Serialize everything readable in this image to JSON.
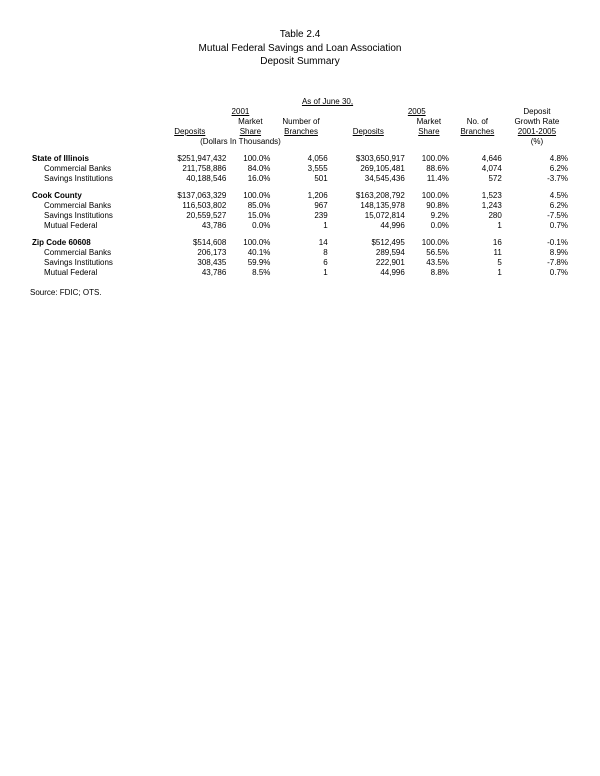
{
  "title": {
    "l1": "Table 2.4",
    "l2": "Mutual Federal Savings and Loan Association",
    "l3": "Deposit Summary"
  },
  "headings": {
    "as_of": "As of June 30,",
    "y2001": "2001",
    "y2005": "2005",
    "deposits": "Deposits",
    "market_share": "Market Share",
    "num_branches": "Number of Branches",
    "no_branches": "No. of Branches",
    "growth_l1": "Deposit",
    "growth_l2": "Growth Rate",
    "growth_l3": "2001-2005",
    "pct": "(%)",
    "dollars_note": "(Dollars In Thousands)"
  },
  "sections": [
    {
      "label": "State of Illinois",
      "row": {
        "dep01": "$251,947,432",
        "ms01": "100.0%",
        "br01": "4,056",
        "dep05": "$303,650,917",
        "ms05": "100.0%",
        "br05": "4,646",
        "gr": "4.8%"
      },
      "children": [
        {
          "label": "Commercial Banks",
          "dep01": "211,758,886",
          "ms01": "84.0%",
          "br01": "3,555",
          "dep05": "269,105,481",
          "ms05": "88.6%",
          "br05": "4,074",
          "gr": "6.2%"
        },
        {
          "label": "Savings Institutions",
          "dep01": "40,188,546",
          "ms01": "16.0%",
          "br01": "501",
          "dep05": "34,545,436",
          "ms05": "11.4%",
          "br05": "572",
          "gr": "-3.7%"
        }
      ]
    },
    {
      "label": "Cook County",
      "row": {
        "dep01": "$137,063,329",
        "ms01": "100.0%",
        "br01": "1,206",
        "dep05": "$163,208,792",
        "ms05": "100.0%",
        "br05": "1,523",
        "gr": "4.5%"
      },
      "children": [
        {
          "label": "Commercial Banks",
          "dep01": "116,503,802",
          "ms01": "85.0%",
          "br01": "967",
          "dep05": "148,135,978",
          "ms05": "90.8%",
          "br05": "1,243",
          "gr": "6.2%"
        },
        {
          "label": "Savings Institutions",
          "dep01": "20,559,527",
          "ms01": "15.0%",
          "br01": "239",
          "dep05": "15,072,814",
          "ms05": "9.2%",
          "br05": "280",
          "gr": "-7.5%"
        },
        {
          "label": "Mutual Federal",
          "dep01": "43,786",
          "ms01": "0.0%",
          "br01": "1",
          "dep05": "44,996",
          "ms05": "0.0%",
          "br05": "1",
          "gr": "0.7%"
        }
      ]
    },
    {
      "label": "Zip Code 60608",
      "row": {
        "dep01": "$514,608",
        "ms01": "100.0%",
        "br01": "14",
        "dep05": "$512,495",
        "ms05": "100.0%",
        "br05": "16",
        "gr": "-0.1%"
      },
      "children": [
        {
          "label": "Commercial Banks",
          "dep01": "206,173",
          "ms01": "40.1%",
          "br01": "8",
          "dep05": "289,594",
          "ms05": "56.5%",
          "br05": "11",
          "gr": "8.9%"
        },
        {
          "label": "Savings Institutions",
          "dep01": "308,435",
          "ms01": "59.9%",
          "br01": "6",
          "dep05": "222,901",
          "ms05": "43.5%",
          "br05": "5",
          "gr": "-7.8%"
        },
        {
          "label": "Mutual Federal",
          "dep01": "43,786",
          "ms01": "8.5%",
          "br01": "1",
          "dep05": "44,996",
          "ms05": "8.8%",
          "br05": "1",
          "gr": "0.7%"
        }
      ]
    }
  ],
  "source": "Source: FDIC; OTS."
}
